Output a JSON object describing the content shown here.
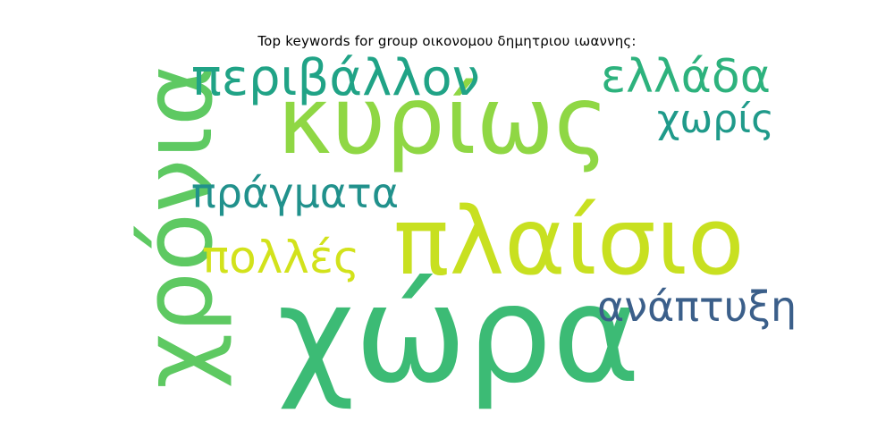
{
  "title": "Top keywords for group οικονομου δημητριου ιωαννης:",
  "words": [
    {
      "text": "χώρα",
      "color": "#3cbb75",
      "rotated": false
    },
    {
      "text": "πλαίσιο",
      "color": "#c8e020",
      "rotated": false
    },
    {
      "text": "κυρίως",
      "color": "#8fd744",
      "rotated": false
    },
    {
      "text": "χρόνια",
      "color": "#5ec962",
      "rotated": true
    },
    {
      "text": "περιβάλλον",
      "color": "#20a386",
      "rotated": false
    },
    {
      "text": "ελλάδα",
      "color": "#2db27d",
      "rotated": false
    },
    {
      "text": "χωρίς",
      "color": "#1f9a8a",
      "rotated": false
    },
    {
      "text": "πράγματα",
      "color": "#21918c",
      "rotated": false
    },
    {
      "text": "πολλές",
      "color": "#d2e21b",
      "rotated": false
    },
    {
      "text": "ανάπτυξη",
      "color": "#3b5f8a",
      "rotated": false
    }
  ]
}
